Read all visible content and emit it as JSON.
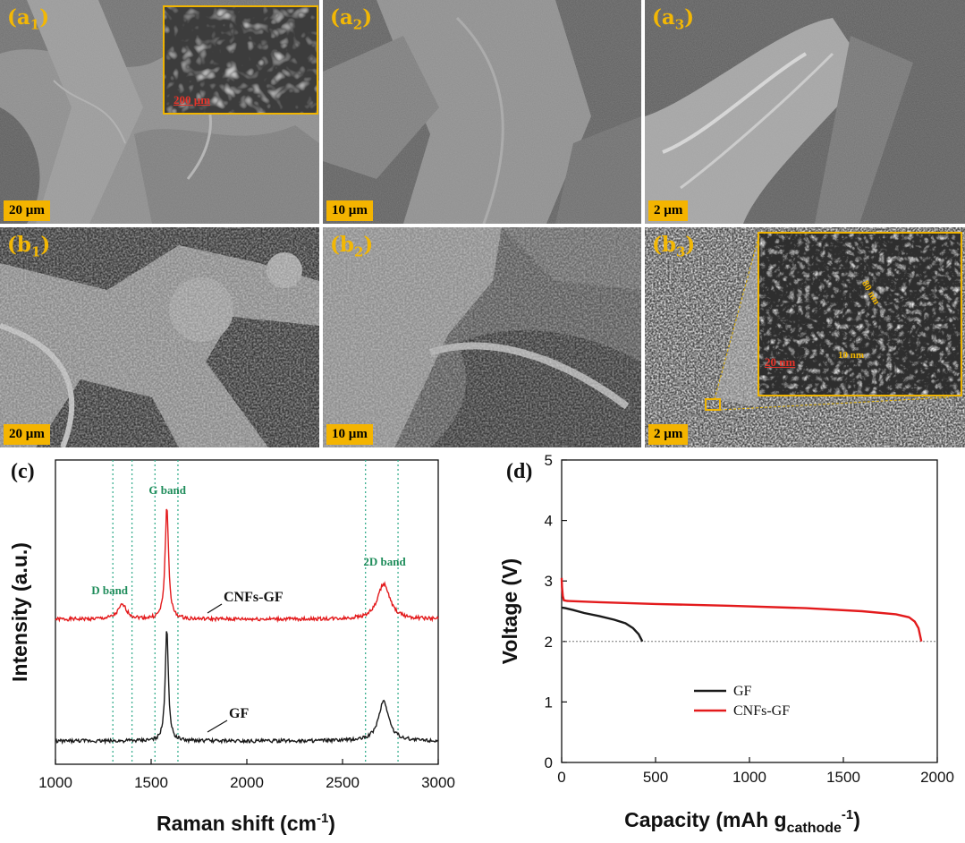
{
  "panels": {
    "a1": {
      "label": "a",
      "sub": "1",
      "scale": "20 µm",
      "inset_scale": "200 µm"
    },
    "a2": {
      "label": "a",
      "sub": "2",
      "scale": "10 µm"
    },
    "a3": {
      "label": "a",
      "sub": "3",
      "scale": "2 µm"
    },
    "b1": {
      "label": "b",
      "sub": "1",
      "scale": "20 µm"
    },
    "b2": {
      "label": "b",
      "sub": "2",
      "scale": "10 µm"
    },
    "b3": {
      "label": "b",
      "sub": "3",
      "scale": "2 µm",
      "inset_scale": "20 nm",
      "inset_note1": "80 nm",
      "inset_note2": "10 nm"
    }
  },
  "colors": {
    "gf": "#1a1a1a",
    "cnfs": "#e31a1c",
    "band_lines": "#3aaf8f",
    "sem_label": "#f2b705"
  },
  "chart_data": [
    {
      "type": "line",
      "panel_label": "(c)",
      "xlabel": "Raman shift (cm",
      "xlabel_sup": "-1",
      "xlabel_end": ")",
      "ylabel": "Intensity (a.u.)",
      "xlim": [
        1000,
        3000
      ],
      "xticks": [
        1000,
        1500,
        2000,
        2500,
        3000
      ],
      "band_lines": [
        1300,
        1400,
        1520,
        1640,
        2620,
        2790
      ],
      "annotations": [
        {
          "text": "D band",
          "x": 1330
        },
        {
          "text": "G band",
          "x": 1585
        },
        {
          "text": "2D band",
          "x": 2720
        }
      ],
      "series": [
        {
          "name": "CNFs-GF",
          "baseline": 1.0,
          "peaks": [
            {
              "x": 1350,
              "h": 0.12,
              "w": 28
            },
            {
              "x": 1582,
              "h": 0.95,
              "w": 11
            },
            {
              "x": 2715,
              "h": 0.3,
              "w": 38
            }
          ]
        },
        {
          "name": "GF",
          "baseline": 0.0,
          "peaks": [
            {
              "x": 1582,
              "h": 0.95,
              "w": 10
            },
            {
              "x": 2715,
              "h": 0.34,
              "w": 32
            }
          ]
        }
      ]
    },
    {
      "type": "line",
      "panel_label": "(d)",
      "xlabel": "Capacity (mAh g",
      "xlabel_sub": "cathode",
      "xlabel_sup": "-1",
      "xlabel_end": ")",
      "ylabel": "Voltage (V)",
      "xlim": [
        0,
        2000
      ],
      "ylim": [
        0,
        5
      ],
      "xticks": [
        0,
        500,
        1000,
        1500,
        2000
      ],
      "yticks": [
        0,
        1,
        2,
        3,
        4,
        5
      ],
      "cutoff": 2.0,
      "legend": [
        "GF",
        "CNFs-GF"
      ],
      "series": [
        {
          "name": "GF",
          "x": [
            0,
            20,
            60,
            120,
            200,
            280,
            340,
            380,
            410,
            430
          ],
          "y": [
            2.56,
            2.55,
            2.52,
            2.47,
            2.42,
            2.36,
            2.3,
            2.22,
            2.12,
            2.0
          ]
        },
        {
          "name": "CNFs-GF",
          "x": [
            0,
            2,
            6,
            12,
            30,
            200,
            500,
            900,
            1300,
            1600,
            1780,
            1850,
            1880,
            1900,
            1915
          ],
          "y": [
            3.05,
            2.9,
            2.75,
            2.68,
            2.67,
            2.65,
            2.62,
            2.59,
            2.55,
            2.5,
            2.45,
            2.4,
            2.33,
            2.22,
            2.0
          ]
        }
      ]
    }
  ]
}
